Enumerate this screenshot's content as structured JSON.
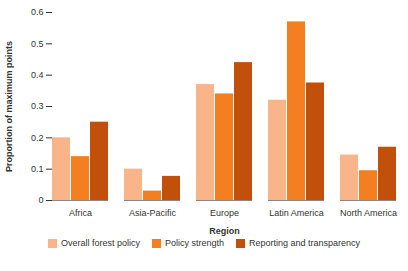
{
  "chart_data": {
    "type": "bar",
    "categories": [
      "Africa",
      "Asia-Pacific",
      "Europe",
      "Latin America",
      "North America"
    ],
    "series": [
      {
        "name": "Overall forest policy",
        "color": "#f9b48a",
        "values": [
          0.2,
          0.1,
          0.37,
          0.32,
          0.145
        ]
      },
      {
        "name": "Policy strength",
        "color": "#f47f20",
        "values": [
          0.14,
          0.03,
          0.34,
          0.57,
          0.095
        ]
      },
      {
        "name": "Reporting and transparency",
        "color": "#c0500a",
        "values": [
          0.25,
          0.077,
          0.44,
          0.375,
          0.17
        ]
      }
    ],
    "x_label": "Region",
    "y_label": "Proportion of maximum points",
    "ylim": [
      0,
      0.6
    ],
    "yticks": [
      0,
      0.1,
      0.2,
      0.3,
      0.4,
      0.5,
      0.6
    ],
    "grid": false,
    "legend": "bottom"
  }
}
